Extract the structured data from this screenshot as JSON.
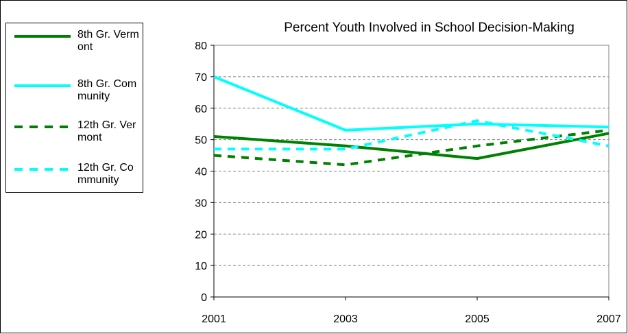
{
  "chart_data": {
    "type": "line",
    "title": "Percent Youth Involved in School Decision-Making",
    "xlabel": "",
    "ylabel": "",
    "x": [
      2001,
      2003,
      2005,
      2007
    ],
    "ylim": [
      0,
      80
    ],
    "yticks": [
      0,
      10,
      20,
      30,
      40,
      50,
      60,
      70,
      80
    ],
    "grid": "horizontal-dashed",
    "legend_position": "left",
    "series": [
      {
        "name": "8th Gr. Vermont",
        "values": [
          51,
          48,
          44,
          52
        ],
        "color": "#008000",
        "dash": "solid"
      },
      {
        "name": "8th Gr. Community",
        "values": [
          70,
          53,
          55,
          54
        ],
        "color": "#00FFFF",
        "dash": "solid"
      },
      {
        "name": "12th Gr. Vermont",
        "values": [
          45,
          42,
          48,
          53
        ],
        "color": "#008000",
        "dash": "dashed"
      },
      {
        "name": "12th Gr. Community",
        "values": [
          47,
          47,
          56,
          48
        ],
        "color": "#00FFFF",
        "dash": "dashed"
      }
    ]
  }
}
